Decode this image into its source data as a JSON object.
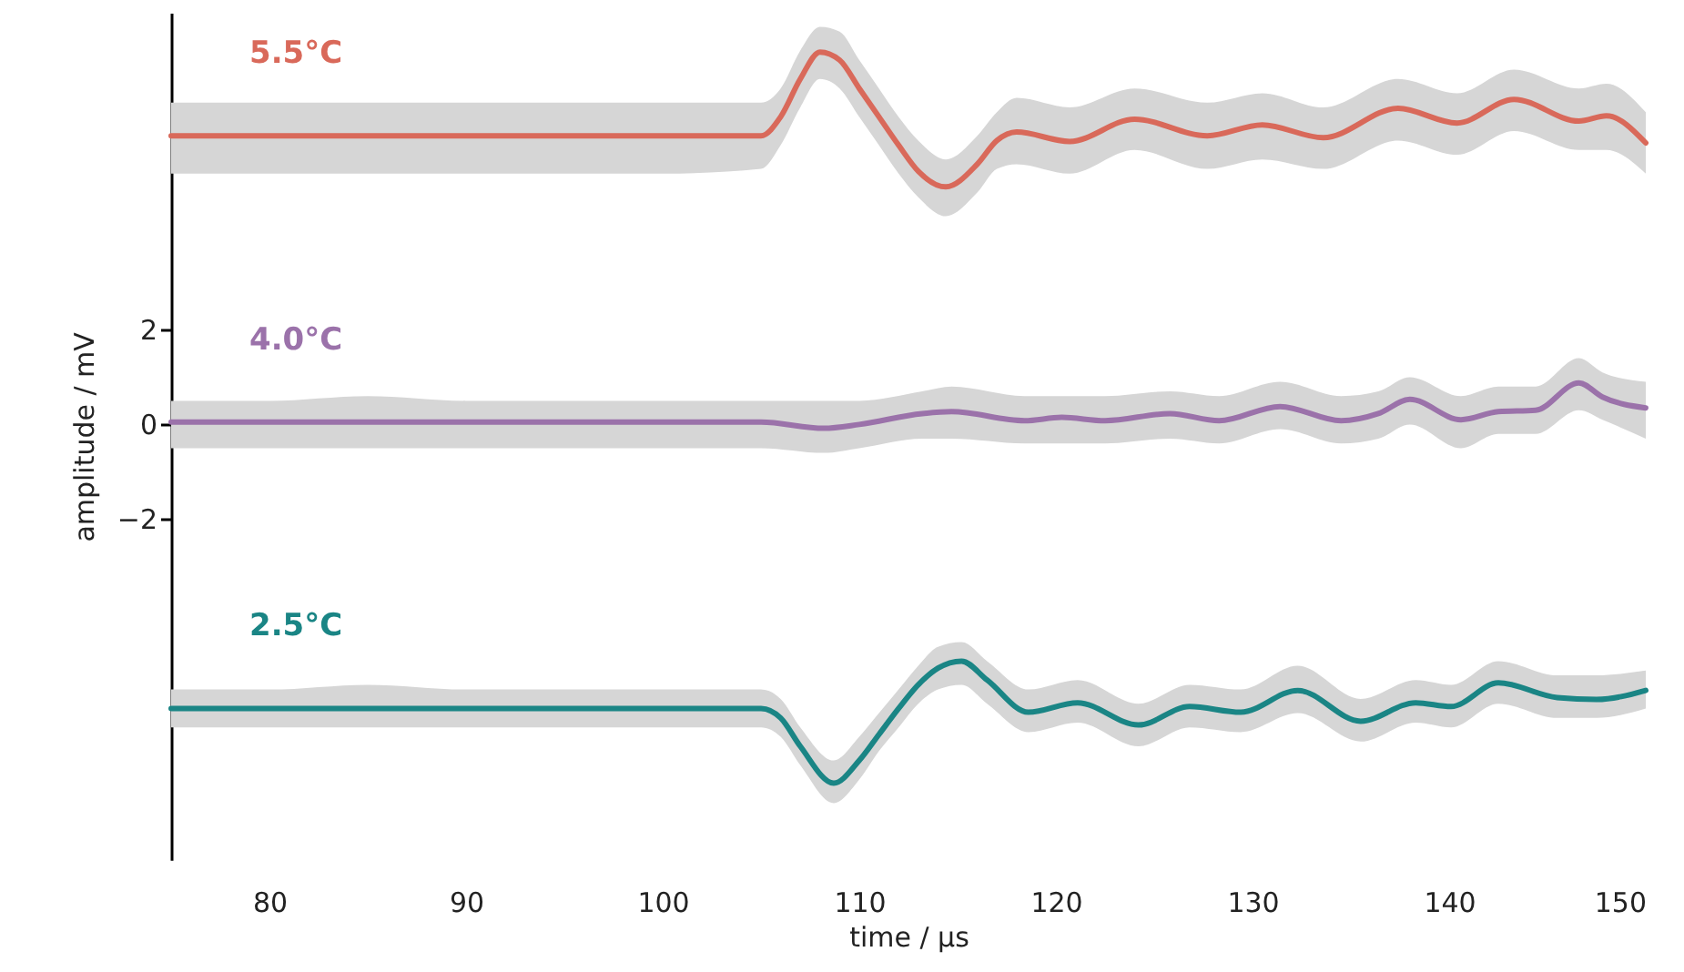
{
  "chart_data": {
    "type": "line",
    "xlim": [
      75,
      150
    ],
    "xticks": [
      80,
      90,
      100,
      110,
      120,
      130,
      140,
      150
    ],
    "ylim": [
      -9.2,
      8.7
    ],
    "yticks": [
      -2,
      0,
      2
    ],
    "xlabel": "time / µs",
    "ylabel": "amplitude / mV",
    "series": [
      {
        "name": "5.5°C",
        "color": "#d9695a",
        "x": [
          75,
          80,
          85,
          90,
          95,
          100,
          105,
          106,
          107,
          108,
          109,
          110,
          111,
          112,
          113,
          114.4,
          116,
          117,
          118,
          120.7,
          124,
          127.7,
          130.5,
          133.6,
          137.4,
          140.4,
          143.3,
          146.6,
          148,
          150
        ],
        "values": [
          6.1,
          6.1,
          6.1,
          6.1,
          6.1,
          6.1,
          6.1,
          6.5,
          7.3,
          7.87,
          7.7,
          7.1,
          6.5,
          5.9,
          5.35,
          5.02,
          5.5,
          6.0,
          6.18,
          5.98,
          6.45,
          6.1,
          6.33,
          6.06,
          6.68,
          6.37,
          6.87,
          6.41,
          6.52,
          5.95
        ],
        "lower": [
          5.3,
          5.3,
          5.3,
          5.3,
          5.3,
          5.3,
          5.4,
          5.9,
          6.7,
          7.3,
          7.1,
          6.5,
          5.9,
          5.3,
          4.8,
          4.4,
          4.9,
          5.4,
          5.5,
          5.3,
          5.8,
          5.4,
          5.6,
          5.4,
          6.0,
          5.7,
          6.2,
          5.8,
          5.8,
          5.3
        ],
        "upper": [
          6.8,
          6.8,
          6.8,
          6.8,
          6.8,
          6.8,
          6.8,
          7.1,
          7.9,
          8.4,
          8.3,
          7.7,
          7.1,
          6.5,
          6.0,
          5.6,
          6.1,
          6.6,
          6.9,
          6.7,
          7.1,
          6.8,
          7.0,
          6.7,
          7.3,
          7.0,
          7.5,
          7.1,
          7.2,
          6.6
        ]
      },
      {
        "name": "4.0°C",
        "color": "#9b72aa",
        "x": [
          75,
          80,
          85,
          90,
          95,
          100,
          105,
          108.2,
          110,
          113.2,
          114.7,
          118.4,
          120.3,
          122.5,
          125.8,
          128.3,
          131.4,
          134.5,
          136.4,
          138,
          140.6,
          142.5,
          144.4,
          146.6,
          147.8,
          150
        ],
        "values": [
          0.05,
          0.05,
          0.05,
          0.05,
          0.05,
          0.05,
          0.05,
          -0.08,
          0,
          0.23,
          0.27,
          0.08,
          0.15,
          0.08,
          0.23,
          0.08,
          0.38,
          0.08,
          0.23,
          0.53,
          0.1,
          0.27,
          0.3,
          0.88,
          0.58,
          0.35
        ],
        "lower": [
          -0.5,
          -0.5,
          -0.5,
          -0.5,
          -0.5,
          -0.5,
          -0.5,
          -0.6,
          -0.5,
          -0.3,
          -0.3,
          -0.4,
          -0.4,
          -0.4,
          -0.3,
          -0.4,
          -0.1,
          -0.4,
          -0.3,
          0,
          -0.5,
          -0.2,
          -0.2,
          0.3,
          0.1,
          -0.3
        ],
        "upper": [
          0.5,
          0.5,
          0.6,
          0.5,
          0.5,
          0.5,
          0.5,
          0.5,
          0.5,
          0.7,
          0.8,
          0.6,
          0.6,
          0.6,
          0.7,
          0.6,
          0.9,
          0.6,
          0.7,
          1.0,
          0.6,
          0.8,
          0.8,
          1.4,
          1.1,
          0.9
        ]
      },
      {
        "name": "2.5°C",
        "color": "#1a8585",
        "x": [
          75,
          80,
          85,
          90,
          95,
          100,
          105,
          106,
          107,
          108.7,
          110,
          111,
          112,
          113,
          114,
          115.2,
          116.5,
          118.6,
          121.1,
          124.2,
          126.8,
          129.4,
          132.3,
          135.5,
          138.3,
          140.1,
          142.5,
          145.5,
          147.5,
          150
        ],
        "values": [
          -6,
          -6,
          -6,
          -6,
          -6,
          -6,
          -6,
          -6.2,
          -6.8,
          -7.58,
          -7.1,
          -6.55,
          -6,
          -5.5,
          -5.15,
          -5.0,
          -5.4,
          -6.08,
          -5.88,
          -6.35,
          -5.96,
          -6.08,
          -5.62,
          -6.27,
          -5.88,
          -5.96,
          -5.46,
          -5.77,
          -5.81,
          -5.62
        ],
        "lower": [
          -6.4,
          -6.4,
          -6.4,
          -6.4,
          -6.4,
          -6.4,
          -6.4,
          -6.6,
          -7.2,
          -8.0,
          -7.5,
          -6.9,
          -6.4,
          -5.9,
          -5.6,
          -5.5,
          -5.9,
          -6.5,
          -6.3,
          -6.8,
          -6.4,
          -6.5,
          -6.1,
          -6.7,
          -6.3,
          -6.4,
          -5.9,
          -6.2,
          -6.2,
          -6.0
        ],
        "upper": [
          -5.6,
          -5.6,
          -5.5,
          -5.6,
          -5.6,
          -5.6,
          -5.6,
          -5.8,
          -6.4,
          -7.1,
          -6.6,
          -6.1,
          -5.6,
          -5.1,
          -4.7,
          -4.6,
          -5.0,
          -5.6,
          -5.4,
          -5.9,
          -5.5,
          -5.6,
          -5.1,
          -5.8,
          -5.4,
          -5.5,
          -5.0,
          -5.3,
          -5.3,
          -5.2
        ]
      }
    ]
  }
}
